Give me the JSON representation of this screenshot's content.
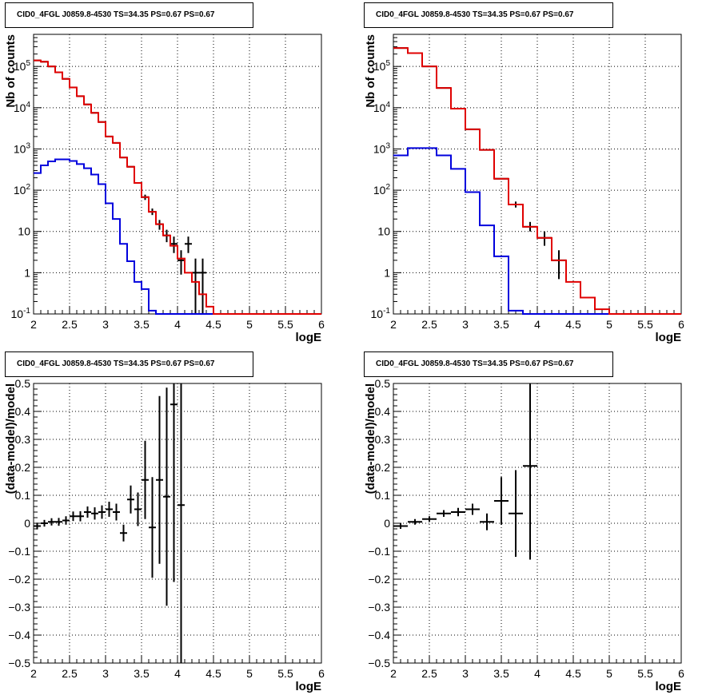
{
  "colors": {
    "data": "#000000",
    "total_model": "#e00000",
    "source_model": "#0000dd",
    "grid": "#000000"
  },
  "chart_data": [
    {
      "type": "line",
      "title": "CID0_4FGL J0859.8-4530 TS=34.35 PS=0.67 PS=0.67",
      "xlabel": "logE",
      "ylabel": "Nb of counts",
      "xlim": [
        2,
        6
      ],
      "ylim": [
        0.1,
        600000
      ],
      "yscale": "log",
      "grid": true,
      "xticks": [
        "2",
        "2.5",
        "3",
        "3.5",
        "4",
        "4.5",
        "5",
        "5.5",
        "6"
      ],
      "yticks": [
        "10^-1",
        "1",
        "10",
        "10^2",
        "10^3",
        "10^4",
        "10^5"
      ],
      "bin_edges": [
        2.0,
        2.1,
        2.2,
        2.3,
        2.4,
        2.5,
        2.6,
        2.7,
        2.8,
        2.9,
        3.0,
        3.1,
        3.2,
        3.3,
        3.4,
        3.5,
        3.6,
        3.7,
        3.8,
        3.9,
        4.0,
        4.1,
        4.2,
        4.3,
        4.4,
        4.5,
        4.6,
        4.7,
        4.8,
        4.9,
        5.0,
        5.1,
        5.2,
        5.3,
        5.4,
        5.5,
        5.6,
        5.7,
        5.8,
        5.9,
        6.0
      ],
      "series": [
        {
          "role": "total_model",
          "values": [
            140000,
            130000,
            100000,
            72000,
            50000,
            31000,
            19000,
            12000,
            7500,
            4500,
            2000,
            1400,
            620,
            370,
            150,
            68,
            30,
            15,
            8,
            4.5,
            2.2,
            1,
            0.6,
            0.3,
            0.15,
            0.1,
            0.1,
            0.1,
            0.1,
            0.1,
            0.1,
            0.1,
            0.1,
            0.1,
            0.1,
            0.1,
            0.1,
            0.1,
            0.1,
            0.1
          ]
        },
        {
          "role": "source_model",
          "values": [
            260,
            400,
            500,
            560,
            560,
            510,
            430,
            340,
            240,
            140,
            48,
            20,
            5,
            1.9,
            0.6,
            0.4,
            0.12,
            0.1,
            0.1,
            0.1,
            0.1,
            0.1,
            0.1,
            0.1,
            0.1,
            0.1,
            0.1,
            0.1,
            0.1,
            0.1,
            0.1,
            0.1,
            0.1,
            0.1,
            0.1,
            0.1,
            0.1,
            0.1,
            0.1,
            0.1
          ]
        },
        {
          "role": "data",
          "points": [
            {
              "x": 2.05,
              "y": 140000
            },
            {
              "x": 2.15,
              "y": 130000
            },
            {
              "x": 2.25,
              "y": 100000
            },
            {
              "x": 2.35,
              "y": 72000
            },
            {
              "x": 2.45,
              "y": 50000
            },
            {
              "x": 2.55,
              "y": 31000
            },
            {
              "x": 2.65,
              "y": 19000
            },
            {
              "x": 2.75,
              "y": 12000
            },
            {
              "x": 2.85,
              "y": 7500
            },
            {
              "x": 2.95,
              "y": 4500
            },
            {
              "x": 3.05,
              "y": 2000
            },
            {
              "x": 3.15,
              "y": 1400
            },
            {
              "x": 3.25,
              "y": 620
            },
            {
              "x": 3.35,
              "y": 370
            },
            {
              "x": 3.45,
              "y": 150
            },
            {
              "x": 3.55,
              "y": 68,
              "lo": 58,
              "hi": 78
            },
            {
              "x": 3.65,
              "y": 30,
              "lo": 25,
              "hi": 36
            },
            {
              "x": 3.75,
              "y": 15,
              "lo": 11,
              "hi": 19
            },
            {
              "x": 3.85,
              "y": 8,
              "lo": 5.5,
              "hi": 11
            },
            {
              "x": 3.95,
              "y": 5,
              "lo": 3,
              "hi": 7.5
            },
            {
              "x": 4.05,
              "y": 2,
              "lo": 0.9,
              "hi": 3.5
            },
            {
              "x": 4.15,
              "y": 5,
              "lo": 3,
              "hi": 7.5
            },
            {
              "x": 4.25,
              "y": 1,
              "lo": 0.1,
              "hi": 2.2
            },
            {
              "x": 4.35,
              "y": 1,
              "lo": 0.1,
              "hi": 2.2
            }
          ]
        }
      ]
    },
    {
      "type": "line",
      "title": "CID0_4FGL J0859.8-4530 TS=34.35 PS=0.67 PS=0.67",
      "xlabel": "logE",
      "ylabel": "Nb of counts",
      "xlim": [
        2,
        6
      ],
      "ylim": [
        0.1,
        600000
      ],
      "yscale": "log",
      "grid": true,
      "xticks": [
        "2",
        "2.5",
        "3",
        "3.5",
        "4",
        "4.5",
        "5",
        "5.5",
        "6"
      ],
      "yticks": [
        "10^-1",
        "1",
        "10",
        "10^2",
        "10^3",
        "10^4",
        "10^5"
      ],
      "bin_edges": [
        2.0,
        2.2,
        2.4,
        2.6,
        2.8,
        3.0,
        3.2,
        3.4,
        3.6,
        3.8,
        4.0,
        4.2,
        4.4,
        4.6,
        4.8,
        5.0,
        5.2,
        5.4,
        5.6,
        5.8,
        6.0
      ],
      "series": [
        {
          "role": "total_model",
          "values": [
            280000,
            210000,
            100000,
            30000,
            9500,
            3000,
            950,
            190,
            45,
            13,
            7,
            2,
            0.6,
            0.25,
            0.13,
            0.1,
            0.1,
            0.1,
            0.1,
            0.1
          ]
        },
        {
          "role": "source_model",
          "values": [
            700,
            1050,
            1050,
            700,
            330,
            90,
            14,
            2.5,
            0.12,
            0.1,
            0.1,
            0.1,
            0.1,
            0.1,
            0.1,
            0.1,
            0.1,
            0.1,
            0.1,
            0.1
          ]
        },
        {
          "role": "data",
          "points": [
            {
              "x": 2.1,
              "y": 280000
            },
            {
              "x": 2.3,
              "y": 210000
            },
            {
              "x": 2.5,
              "y": 100000
            },
            {
              "x": 2.7,
              "y": 30000
            },
            {
              "x": 2.9,
              "y": 9500
            },
            {
              "x": 3.1,
              "y": 3000
            },
            {
              "x": 3.3,
              "y": 950
            },
            {
              "x": 3.5,
              "y": 190
            },
            {
              "x": 3.7,
              "y": 45,
              "lo": 38,
              "hi": 53
            },
            {
              "x": 3.9,
              "y": 13,
              "lo": 10,
              "hi": 17
            },
            {
              "x": 4.1,
              "y": 7,
              "lo": 4.5,
              "hi": 10
            },
            {
              "x": 4.3,
              "y": 2,
              "lo": 0.7,
              "hi": 3.5
            }
          ]
        }
      ]
    },
    {
      "type": "scatter",
      "title": "CID0_4FGL J0859.8-4530 TS=34.35 PS=0.67 PS=0.67",
      "xlabel": "logE",
      "ylabel": "(data-model)/model",
      "xlim": [
        2,
        6
      ],
      "ylim": [
        -0.5,
        0.5
      ],
      "grid": true,
      "xticks": [
        "2",
        "2.5",
        "3",
        "3.5",
        "4",
        "4.5",
        "5",
        "5.5",
        "6"
      ],
      "yticks": [
        "-0.5",
        "-0.4",
        "-0.3",
        "-0.2",
        "-0.1",
        "0",
        "0.1",
        "0.2",
        "0.3",
        "0.4",
        "0.5"
      ],
      "bin_width": 0.1,
      "points": [
        {
          "x": 2.05,
          "y": -0.01,
          "err": 0.012
        },
        {
          "x": 2.15,
          "y": 0.0,
          "err": 0.012
        },
        {
          "x": 2.25,
          "y": 0.005,
          "err": 0.013
        },
        {
          "x": 2.35,
          "y": 0.005,
          "err": 0.014
        },
        {
          "x": 2.45,
          "y": 0.01,
          "err": 0.015
        },
        {
          "x": 2.55,
          "y": 0.025,
          "err": 0.017
        },
        {
          "x": 2.65,
          "y": 0.025,
          "err": 0.018
        },
        {
          "x": 2.75,
          "y": 0.04,
          "err": 0.02
        },
        {
          "x": 2.85,
          "y": 0.035,
          "err": 0.022
        },
        {
          "x": 2.95,
          "y": 0.04,
          "err": 0.024
        },
        {
          "x": 3.05,
          "y": 0.05,
          "err": 0.027
        },
        {
          "x": 3.15,
          "y": 0.04,
          "err": 0.03
        },
        {
          "x": 3.25,
          "y": -0.035,
          "err": 0.03
        },
        {
          "x": 3.35,
          "y": 0.085,
          "err": 0.05
        },
        {
          "x": 3.45,
          "y": 0.05,
          "err": 0.06
        },
        {
          "x": 3.55,
          "y": 0.155,
          "err": 0.14
        },
        {
          "x": 3.65,
          "y": -0.015,
          "err": 0.18
        },
        {
          "x": 3.75,
          "y": 0.155,
          "err": 0.3
        },
        {
          "x": 3.85,
          "y": 0.095,
          "err": 0.39
        },
        {
          "x": 3.95,
          "y": 0.425,
          "err": 0.635
        },
        {
          "x": 4.05,
          "y": 0.065,
          "err": 0.75
        }
      ]
    },
    {
      "type": "scatter",
      "title": "CID0_4FGL J0859.8-4530 TS=34.35 PS=0.67 PS=0.67",
      "xlabel": "logE",
      "ylabel": "(data-model)/model",
      "xlim": [
        2,
        6
      ],
      "ylim": [
        -0.5,
        0.5
      ],
      "grid": true,
      "xticks": [
        "2",
        "2.5",
        "3",
        "3.5",
        "4",
        "4.5",
        "5",
        "5.5",
        "6"
      ],
      "yticks": [
        "-0.5",
        "-0.4",
        "-0.3",
        "-0.2",
        "-0.1",
        "0",
        "0.1",
        "0.2",
        "0.3",
        "0.4",
        "0.5"
      ],
      "bin_width": 0.2,
      "points": [
        {
          "x": 2.1,
          "y": -0.01,
          "err": 0.01
        },
        {
          "x": 2.3,
          "y": 0.005,
          "err": 0.01
        },
        {
          "x": 2.5,
          "y": 0.015,
          "err": 0.01
        },
        {
          "x": 2.7,
          "y": 0.035,
          "err": 0.012
        },
        {
          "x": 2.9,
          "y": 0.04,
          "err": 0.015
        },
        {
          "x": 3.1,
          "y": 0.05,
          "err": 0.02
        },
        {
          "x": 3.3,
          "y": 0.005,
          "err": 0.03
        },
        {
          "x": 3.5,
          "y": 0.08,
          "err": 0.085
        },
        {
          "x": 3.7,
          "y": 0.035,
          "err": 0.155
        },
        {
          "x": 3.9,
          "y": 0.205,
          "err": 0.335
        }
      ]
    }
  ]
}
